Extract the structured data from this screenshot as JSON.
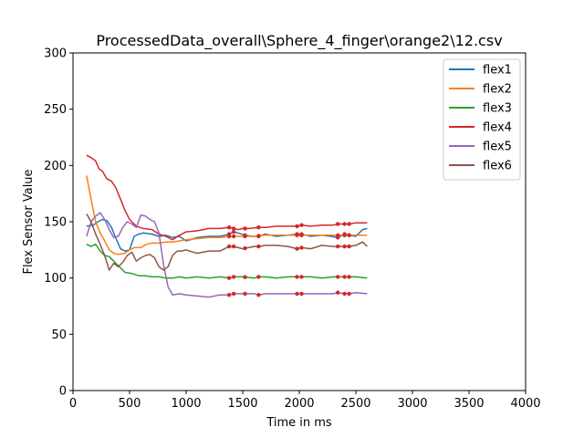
{
  "chart_data": {
    "type": "line",
    "title": "ProcessedData_overall\\Sphere_4_finger\\orange2\\12.csv",
    "xlabel": "Time in ms",
    "ylabel": "Flex Sensor Value",
    "xlim": [
      0,
      4000
    ],
    "ylim": [
      0,
      300
    ],
    "xticks": [
      0,
      500,
      1000,
      1500,
      2000,
      2500,
      3000,
      3500,
      4000
    ],
    "yticks": [
      0,
      50,
      100,
      150,
      200,
      250,
      300
    ],
    "grid": false,
    "legend_position": "top-right",
    "marker_color": "#d62728",
    "marker_x": [
      1380,
      1420,
      1520,
      1640,
      1980,
      2020,
      2340,
      2400,
      2440
    ],
    "series": [
      {
        "name": "flex1",
        "color": "#1f77b4",
        "x": [
          120,
          180,
          220,
          260,
          300,
          340,
          380,
          420,
          460,
          500,
          540,
          580,
          620,
          700,
          760,
          820,
          880,
          940,
          1000,
          1100,
          1200,
          1300,
          1380,
          1420,
          1460,
          1520,
          1580,
          1640,
          1700,
          1800,
          1900,
          1980,
          2020,
          2100,
          2200,
          2280,
          2340,
          2400,
          2440,
          2500,
          2560,
          2600
        ],
        "y": [
          146,
          147,
          150,
          152,
          151,
          145,
          135,
          126,
          124,
          125,
          137,
          139,
          140,
          139,
          137,
          138,
          136,
          137,
          133,
          136,
          137,
          137,
          139,
          141,
          140,
          138,
          137,
          137,
          139,
          137,
          138,
          139,
          139,
          137,
          138,
          137,
          136,
          139,
          138,
          137,
          143,
          144
        ]
      },
      {
        "name": "flex2",
        "color": "#ff7f0e",
        "x": [
          120,
          160,
          200,
          240,
          280,
          320,
          360,
          400,
          460,
          500,
          540,
          600,
          650,
          700,
          760,
          820,
          880,
          940,
          1000,
          1100,
          1200,
          1300,
          1380,
          1420,
          1500,
          1600,
          1700,
          1800,
          1900,
          1980,
          2020,
          2100,
          2200,
          2300,
          2340,
          2400,
          2440,
          2500,
          2600
        ],
        "y": [
          191,
          170,
          150,
          140,
          133,
          125,
          122,
          121,
          122,
          125,
          127,
          127,
          130,
          131,
          131,
          132,
          132,
          133,
          134,
          135,
          136,
          136,
          137,
          137,
          137,
          137,
          138,
          138,
          138,
          138,
          138,
          138,
          138,
          138,
          138,
          138,
          138,
          138,
          138
        ]
      },
      {
        "name": "flex3",
        "color": "#2ca02c",
        "x": [
          120,
          160,
          200,
          240,
          280,
          320,
          360,
          400,
          460,
          520,
          580,
          640,
          700,
          760,
          820,
          880,
          940,
          1000,
          1100,
          1200,
          1300,
          1380,
          1420,
          1500,
          1600,
          1640,
          1700,
          1800,
          1900,
          1980,
          2020,
          2100,
          2200,
          2300,
          2340,
          2400,
          2440,
          2500,
          2600
        ],
        "y": [
          130,
          128,
          130,
          124,
          120,
          119,
          115,
          111,
          105,
          104,
          102,
          102,
          101,
          101,
          100,
          100,
          101,
          100,
          101,
          100,
          101,
          100,
          101,
          101,
          100,
          101,
          101,
          100,
          101,
          101,
          101,
          101,
          100,
          101,
          101,
          101,
          101,
          101,
          100
        ]
      },
      {
        "name": "flex4",
        "color": "#d62728",
        "x": [
          120,
          160,
          200,
          230,
          260,
          300,
          340,
          380,
          420,
          460,
          500,
          560,
          620,
          700,
          760,
          820,
          880,
          940,
          1000,
          1100,
          1200,
          1300,
          1380,
          1420,
          1460,
          1500,
          1560,
          1640,
          1700,
          1800,
          1900,
          1980,
          2020,
          2100,
          2200,
          2300,
          2340,
          2400,
          2440,
          2500,
          2600
        ],
        "y": [
          209,
          207,
          204,
          197,
          195,
          188,
          186,
          180,
          170,
          160,
          152,
          146,
          144,
          143,
          139,
          137,
          134,
          138,
          141,
          142,
          144,
          144,
          145,
          144,
          143,
          144,
          144,
          145,
          145,
          146,
          146,
          146,
          147,
          146,
          147,
          147,
          148,
          148,
          148,
          149,
          149
        ]
      },
      {
        "name": "flex5",
        "color": "#9467bd",
        "x": [
          120,
          160,
          200,
          240,
          280,
          320,
          360,
          400,
          440,
          480,
          520,
          560,
          600,
          640,
          680,
          720,
          760,
          800,
          840,
          880,
          940,
          1000,
          1100,
          1200,
          1300,
          1380,
          1420,
          1500,
          1600,
          1640,
          1700,
          1800,
          1900,
          1980,
          2020,
          2100,
          2200,
          2300,
          2340,
          2400,
          2440,
          2500,
          2600
        ],
        "y": [
          137,
          150,
          155,
          158,
          152,
          143,
          136,
          137,
          145,
          150,
          148,
          145,
          156,
          155,
          152,
          150,
          140,
          112,
          92,
          85,
          86,
          85,
          84,
          83,
          85,
          85,
          86,
          86,
          86,
          85,
          86,
          86,
          86,
          86,
          86,
          86,
          86,
          86,
          87,
          86,
          86,
          87,
          86
        ]
      },
      {
        "name": "flex6",
        "color": "#8c564b",
        "x": [
          120,
          160,
          200,
          240,
          280,
          320,
          360,
          400,
          440,
          480,
          520,
          560,
          600,
          640,
          680,
          720,
          760,
          800,
          840,
          880,
          920,
          960,
          1000,
          1060,
          1100,
          1200,
          1300,
          1380,
          1420,
          1500,
          1600,
          1640,
          1700,
          1800,
          1900,
          1980,
          2020,
          2100,
          2200,
          2300,
          2340,
          2400,
          2440,
          2500,
          2560,
          2600
        ],
        "y": [
          157,
          150,
          139,
          130,
          120,
          107,
          113,
          110,
          114,
          120,
          123,
          115,
          118,
          120,
          121,
          118,
          110,
          107,
          110,
          120,
          124,
          124,
          125,
          123,
          122,
          124,
          124,
          128,
          128,
          126,
          128,
          128,
          129,
          129,
          128,
          126,
          127,
          126,
          129,
          128,
          128,
          128,
          128,
          129,
          132,
          128
        ]
      }
    ]
  }
}
